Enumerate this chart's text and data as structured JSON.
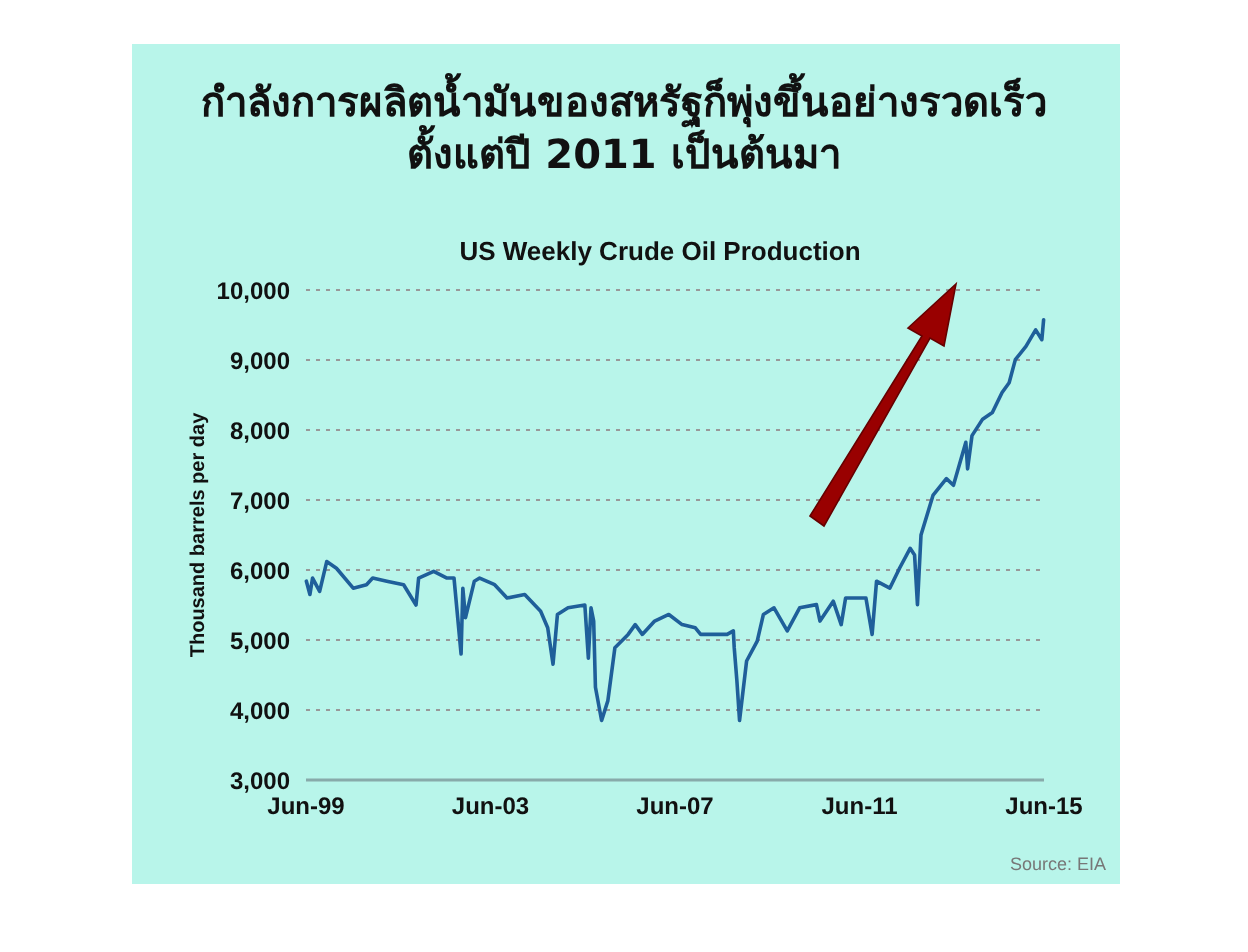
{
  "chart_data": {
    "type": "line",
    "title": "กำลังการผลิตน้ำมันของสหรัฐก็พุ่งขึ้นอย่างรวดเร็ว\nตั้งแต่ปี 2011 เป็นต้นมา",
    "subtitle": "US Weekly Crude Oil Production",
    "ylabel": "Thousand barrels per day",
    "annotations": [
      "Source: EIA"
    ],
    "xlim": [
      "1999-06-01",
      "2015-06-01"
    ],
    "xticks": [
      {
        "value": "1999-06-01",
        "label": "Jun-99"
      },
      {
        "value": "2003-06-01",
        "label": "Jun-03"
      },
      {
        "value": "2007-06-01",
        "label": "Jun-07"
      },
      {
        "value": "2011-06-01",
        "label": "Jun-11"
      },
      {
        "value": "2015-06-01",
        "label": "Jun-15"
      }
    ],
    "ylim": [
      3000,
      10000
    ],
    "yticks": [
      {
        "value": 3000,
        "label": "3,000"
      },
      {
        "value": 4000,
        "label": "4,000"
      },
      {
        "value": 5000,
        "label": "5,000"
      },
      {
        "value": 6000,
        "label": "6,000"
      },
      {
        "value": 7000,
        "label": "7,000"
      },
      {
        "value": 8000,
        "label": "8,000"
      },
      {
        "value": 9000,
        "label": "9,000"
      },
      {
        "value": 10000,
        "label": "10,000"
      }
    ],
    "grid": "y",
    "x": [
      "1999-06-04",
      "1999-07-02",
      "1999-07-23",
      "1999-09-17",
      "1999-11-12",
      "2000-01-28",
      "2000-06-09",
      "2000-09-22",
      "2000-11-10",
      "2001-03-02",
      "2001-07-13",
      "2001-10-19",
      "2001-11-09",
      "2002-03-08",
      "2002-06-21",
      "2002-08-16",
      "2002-10-11",
      "2002-10-25",
      "2002-11-15",
      "2003-01-24",
      "2003-03-07",
      "2003-07-04",
      "2003-10-10",
      "2004-02-27",
      "2004-07-02",
      "2004-08-27",
      "2004-10-08",
      "2004-11-12",
      "2005-02-04",
      "2005-06-17",
      "2005-07-15",
      "2005-08-05",
      "2005-08-26",
      "2005-09-09",
      "2005-10-28",
      "2005-12-16",
      "2006-02-10",
      "2006-05-26",
      "2006-07-21",
      "2006-09-15",
      "2006-12-22",
      "2007-04-13",
      "2007-07-27",
      "2007-11-09",
      "2007-12-21",
      "2008-07-18",
      "2008-09-05",
      "2008-09-12",
      "2008-10-03",
      "2008-10-24",
      "2008-12-19",
      "2009-03-13",
      "2009-05-01",
      "2009-07-24",
      "2009-11-06",
      "2010-02-12",
      "2010-06-25",
      "2010-07-23",
      "2010-11-05",
      "2011-01-07",
      "2011-02-11",
      "2011-07-22",
      "2011-09-09",
      "2011-10-14",
      "2012-01-27",
      "2012-04-13",
      "2012-07-06",
      "2012-08-10",
      "2012-09-02",
      "2012-09-30",
      "2013-01-04",
      "2013-04-19",
      "2013-06-14",
      "2013-09-20",
      "2013-10-04",
      "2013-11-08",
      "2014-01-31",
      "2014-04-18",
      "2014-07-04",
      "2014-08-29",
      "2014-10-17",
      "2015-01-09",
      "2015-03-27",
      "2015-05-15",
      "2015-05-29"
    ],
    "series": [
      {
        "color": "#1f5f9a",
        "values": [
          5840,
          5650,
          5885,
          5695,
          6120,
          6025,
          5740,
          5790,
          5885,
          5840,
          5790,
          5500,
          5885,
          5980,
          5885,
          5885,
          4800,
          5740,
          5320,
          5840,
          5885,
          5790,
          5600,
          5650,
          5410,
          5175,
          4655,
          5365,
          5460,
          5500,
          4740,
          5460,
          5270,
          4325,
          3850,
          4130,
          4890,
          5080,
          5220,
          5080,
          5270,
          5365,
          5220,
          5175,
          5080,
          5080,
          5130,
          4890,
          4420,
          3850,
          4700,
          4985,
          5365,
          5460,
          5130,
          5460,
          5505,
          5270,
          5555,
          5220,
          5600,
          5600,
          5080,
          5840,
          5740,
          6025,
          6310,
          6215,
          5505,
          6500,
          7070,
          7305,
          7210,
          7825,
          7445,
          7920,
          8155,
          8250,
          8535,
          8675,
          9005,
          9195,
          9430,
          9290,
          9575
        ]
      }
    ]
  }
}
